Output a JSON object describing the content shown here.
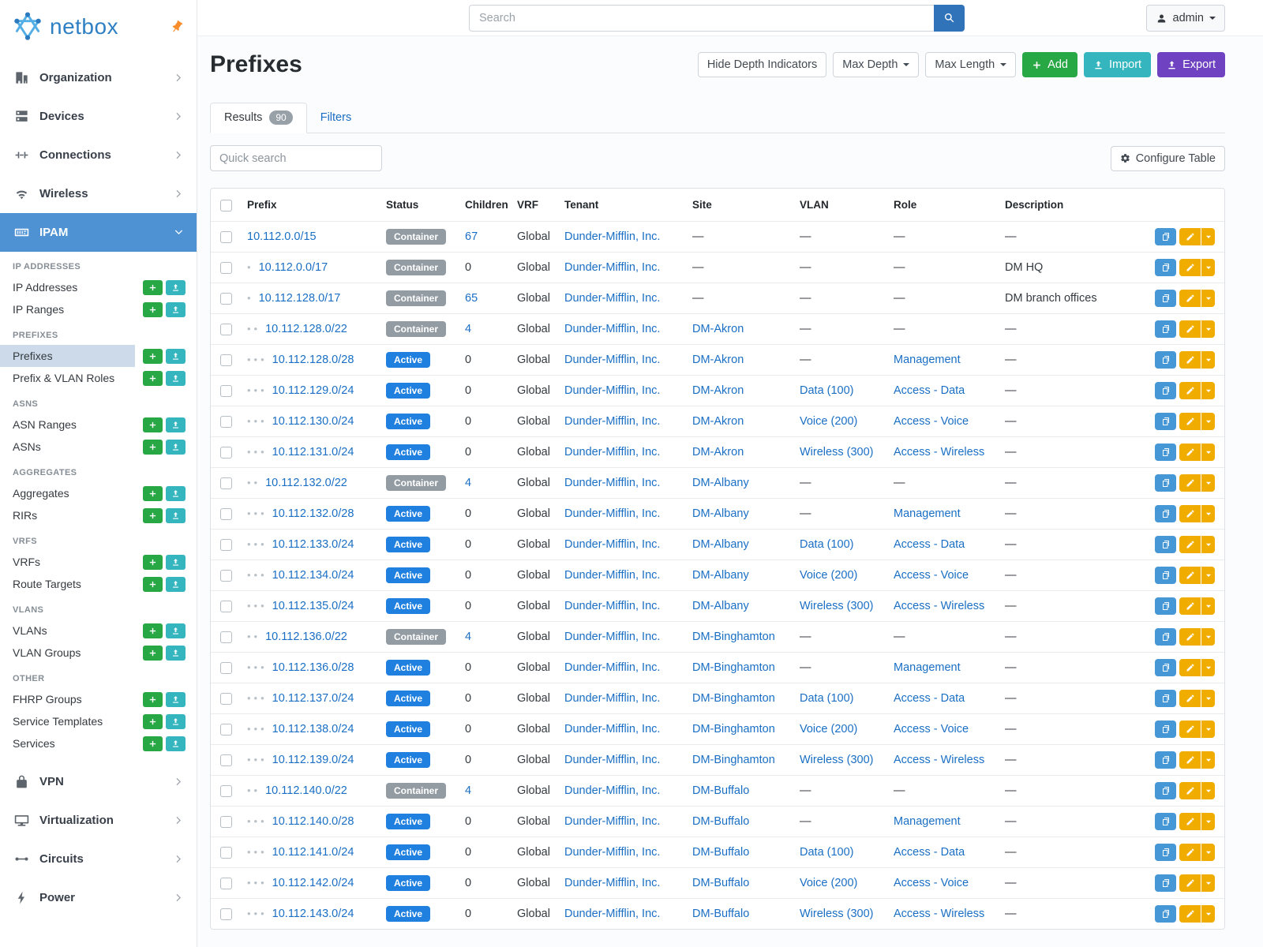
{
  "brand": {
    "logo_text": "netbox",
    "logo_icon": "netbox-logo-icon",
    "pin_icon": "pin-icon"
  },
  "topbar": {
    "search_placeholder": "Search",
    "search_button_icon": "search-icon",
    "user_label": "admin",
    "user_icon": "person-icon"
  },
  "sidebar": {
    "top_items": [
      {
        "label": "Organization",
        "icon": "building-icon"
      },
      {
        "label": "Devices",
        "icon": "rack-icon"
      },
      {
        "label": "Connections",
        "icon": "connection-icon"
      },
      {
        "label": "Wireless",
        "icon": "wifi-icon"
      }
    ],
    "active_item": {
      "label": "IPAM",
      "icon": "ipam-icon"
    },
    "groups": [
      {
        "header": "IP ADDRESSES",
        "items": [
          {
            "label": "IP Addresses"
          },
          {
            "label": "IP Ranges"
          }
        ]
      },
      {
        "header": "PREFIXES",
        "items": [
          {
            "label": "Prefixes",
            "active": true
          },
          {
            "label": "Prefix & VLAN Roles"
          }
        ]
      },
      {
        "header": "ASNS",
        "items": [
          {
            "label": "ASN Ranges"
          },
          {
            "label": "ASNs"
          }
        ]
      },
      {
        "header": "AGGREGATES",
        "items": [
          {
            "label": "Aggregates"
          },
          {
            "label": "RIRs"
          }
        ]
      },
      {
        "header": "VRFS",
        "items": [
          {
            "label": "VRFs"
          },
          {
            "label": "Route Targets"
          }
        ]
      },
      {
        "header": "VLANS",
        "items": [
          {
            "label": "VLANs"
          },
          {
            "label": "VLAN Groups"
          }
        ]
      },
      {
        "header": "OTHER",
        "items": [
          {
            "label": "FHRP Groups"
          },
          {
            "label": "Service Templates"
          },
          {
            "label": "Services"
          }
        ]
      }
    ],
    "bottom_items": [
      {
        "label": "VPN",
        "icon": "vpn-lock-icon"
      },
      {
        "label": "Virtualization",
        "icon": "monitor-icon"
      },
      {
        "label": "Circuits",
        "icon": "circuit-icon"
      },
      {
        "label": "Power",
        "icon": "power-icon"
      }
    ]
  },
  "page": {
    "title": "Prefixes",
    "actions": {
      "hide_depth": "Hide Depth Indicators",
      "max_depth": "Max Depth",
      "max_length": "Max Length",
      "add": "Add",
      "import": "Import",
      "export": "Export"
    },
    "tabs": {
      "results": "Results",
      "results_count": "90",
      "filters": "Filters"
    },
    "quick_search_placeholder": "Quick search",
    "configure_table": "Configure Table"
  },
  "table": {
    "columns": [
      "Prefix",
      "Status",
      "Children",
      "VRF",
      "Tenant",
      "Site",
      "VLAN",
      "Role",
      "Description"
    ],
    "empty_value": "—",
    "row_action_icons": [
      "clipboard-icon",
      "pencil-icon",
      "caret-down-icon"
    ],
    "rows": [
      {
        "depth": 0,
        "prefix": "10.112.0.0/15",
        "status": "Container",
        "children": "67",
        "vrf": "Global",
        "tenant": "Dunder-Mifflin, Inc.",
        "site": "—",
        "vlan": "—",
        "role": "—",
        "description": "—"
      },
      {
        "depth": 1,
        "prefix": "10.112.0.0/17",
        "status": "Container",
        "children": "0",
        "vrf": "Global",
        "tenant": "Dunder-Mifflin, Inc.",
        "site": "—",
        "vlan": "—",
        "role": "—",
        "description": "DM HQ"
      },
      {
        "depth": 1,
        "prefix": "10.112.128.0/17",
        "status": "Container",
        "children": "65",
        "vrf": "Global",
        "tenant": "Dunder-Mifflin, Inc.",
        "site": "—",
        "vlan": "—",
        "role": "—",
        "description": "DM branch offices"
      },
      {
        "depth": 2,
        "prefix": "10.112.128.0/22",
        "status": "Container",
        "children": "4",
        "vrf": "Global",
        "tenant": "Dunder-Mifflin, Inc.",
        "site": "DM-Akron",
        "vlan": "—",
        "role": "—",
        "description": "—"
      },
      {
        "depth": 3,
        "prefix": "10.112.128.0/28",
        "status": "Active",
        "children": "0",
        "vrf": "Global",
        "tenant": "Dunder-Mifflin, Inc.",
        "site": "DM-Akron",
        "vlan": "—",
        "role": "Management",
        "description": "—"
      },
      {
        "depth": 3,
        "prefix": "10.112.129.0/24",
        "status": "Active",
        "children": "0",
        "vrf": "Global",
        "tenant": "Dunder-Mifflin, Inc.",
        "site": "DM-Akron",
        "vlan": "Data (100)",
        "role": "Access - Data",
        "description": "—"
      },
      {
        "depth": 3,
        "prefix": "10.112.130.0/24",
        "status": "Active",
        "children": "0",
        "vrf": "Global",
        "tenant": "Dunder-Mifflin, Inc.",
        "site": "DM-Akron",
        "vlan": "Voice (200)",
        "role": "Access - Voice",
        "description": "—"
      },
      {
        "depth": 3,
        "prefix": "10.112.131.0/24",
        "status": "Active",
        "children": "0",
        "vrf": "Global",
        "tenant": "Dunder-Mifflin, Inc.",
        "site": "DM-Akron",
        "vlan": "Wireless (300)",
        "role": "Access - Wireless",
        "description": "—"
      },
      {
        "depth": 2,
        "prefix": "10.112.132.0/22",
        "status": "Container",
        "children": "4",
        "vrf": "Global",
        "tenant": "Dunder-Mifflin, Inc.",
        "site": "DM-Albany",
        "vlan": "—",
        "role": "—",
        "description": "—"
      },
      {
        "depth": 3,
        "prefix": "10.112.132.0/28",
        "status": "Active",
        "children": "0",
        "vrf": "Global",
        "tenant": "Dunder-Mifflin, Inc.",
        "site": "DM-Albany",
        "vlan": "—",
        "role": "Management",
        "description": "—"
      },
      {
        "depth": 3,
        "prefix": "10.112.133.0/24",
        "status": "Active",
        "children": "0",
        "vrf": "Global",
        "tenant": "Dunder-Mifflin, Inc.",
        "site": "DM-Albany",
        "vlan": "Data (100)",
        "role": "Access - Data",
        "description": "—"
      },
      {
        "depth": 3,
        "prefix": "10.112.134.0/24",
        "status": "Active",
        "children": "0",
        "vrf": "Global",
        "tenant": "Dunder-Mifflin, Inc.",
        "site": "DM-Albany",
        "vlan": "Voice (200)",
        "role": "Access - Voice",
        "description": "—"
      },
      {
        "depth": 3,
        "prefix": "10.112.135.0/24",
        "status": "Active",
        "children": "0",
        "vrf": "Global",
        "tenant": "Dunder-Mifflin, Inc.",
        "site": "DM-Albany",
        "vlan": "Wireless (300)",
        "role": "Access - Wireless",
        "description": "—"
      },
      {
        "depth": 2,
        "prefix": "10.112.136.0/22",
        "status": "Container",
        "children": "4",
        "vrf": "Global",
        "tenant": "Dunder-Mifflin, Inc.",
        "site": "DM-Binghamton",
        "vlan": "—",
        "role": "—",
        "description": "—"
      },
      {
        "depth": 3,
        "prefix": "10.112.136.0/28",
        "status": "Active",
        "children": "0",
        "vrf": "Global",
        "tenant": "Dunder-Mifflin, Inc.",
        "site": "DM-Binghamton",
        "vlan": "—",
        "role": "Management",
        "description": "—"
      },
      {
        "depth": 3,
        "prefix": "10.112.137.0/24",
        "status": "Active",
        "children": "0",
        "vrf": "Global",
        "tenant": "Dunder-Mifflin, Inc.",
        "site": "DM-Binghamton",
        "vlan": "Data (100)",
        "role": "Access - Data",
        "description": "—"
      },
      {
        "depth": 3,
        "prefix": "10.112.138.0/24",
        "status": "Active",
        "children": "0",
        "vrf": "Global",
        "tenant": "Dunder-Mifflin, Inc.",
        "site": "DM-Binghamton",
        "vlan": "Voice (200)",
        "role": "Access - Voice",
        "description": "—"
      },
      {
        "depth": 3,
        "prefix": "10.112.139.0/24",
        "status": "Active",
        "children": "0",
        "vrf": "Global",
        "tenant": "Dunder-Mifflin, Inc.",
        "site": "DM-Binghamton",
        "vlan": "Wireless (300)",
        "role": "Access - Wireless",
        "description": "—"
      },
      {
        "depth": 2,
        "prefix": "10.112.140.0/22",
        "status": "Container",
        "children": "4",
        "vrf": "Global",
        "tenant": "Dunder-Mifflin, Inc.",
        "site": "DM-Buffalo",
        "vlan": "—",
        "role": "—",
        "description": "—"
      },
      {
        "depth": 3,
        "prefix": "10.112.140.0/28",
        "status": "Active",
        "children": "0",
        "vrf": "Global",
        "tenant": "Dunder-Mifflin, Inc.",
        "site": "DM-Buffalo",
        "vlan": "—",
        "role": "Management",
        "description": "—"
      },
      {
        "depth": 3,
        "prefix": "10.112.141.0/24",
        "status": "Active",
        "children": "0",
        "vrf": "Global",
        "tenant": "Dunder-Mifflin, Inc.",
        "site": "DM-Buffalo",
        "vlan": "Data (100)",
        "role": "Access - Data",
        "description": "—"
      },
      {
        "depth": 3,
        "prefix": "10.112.142.0/24",
        "status": "Active",
        "children": "0",
        "vrf": "Global",
        "tenant": "Dunder-Mifflin, Inc.",
        "site": "DM-Buffalo",
        "vlan": "Voice (200)",
        "role": "Access - Voice",
        "description": "—"
      },
      {
        "depth": 3,
        "prefix": "10.112.143.0/24",
        "status": "Active",
        "children": "0",
        "vrf": "Global",
        "tenant": "Dunder-Mifflin, Inc.",
        "site": "DM-Buffalo",
        "vlan": "Wireless (300)",
        "role": "Access - Wireless",
        "description": "—"
      }
    ]
  },
  "colors": {
    "sidebar_active_bg": "#4e92d4",
    "subnav_active_bg": "#ccdaea",
    "add_green": "#28a745",
    "import_teal": "#35b6bf",
    "export_purple": "#6f42c1",
    "link_blue": "#1a6fc4",
    "status_active_badge": "#1f80e0",
    "status_container_badge": "#939ba3",
    "edit_yellow": "#f0ad00",
    "copy_blue": "#4697d6",
    "search_button_blue": "#3173b9",
    "brand_blue": "#2f80c3",
    "pin_orange": "#f98d2b"
  }
}
